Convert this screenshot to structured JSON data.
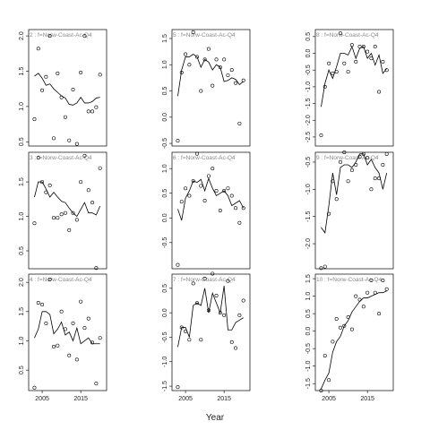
{
  "chart_data": [
    {
      "type": "scatter",
      "title": "2 : f=Norw-Coast-Ac-Q4",
      "xlim": [
        2001.5,
        2021.7
      ],
      "x": [
        2003,
        2004,
        2005,
        2006,
        2007,
        2008,
        2009,
        2010,
        2011,
        2012,
        2013,
        2014,
        2015,
        2016,
        2017,
        2018,
        2019,
        2020
      ],
      "values": [
        0.82,
        1.82,
        1.23,
        1.42,
        2.0,
        0.55,
        1.47,
        1.13,
        0.85,
        0.52,
        1.24,
        0.47,
        1.48,
        2.0,
        0.93,
        0.93,
        0.99,
        1.45
      ],
      "line": [
        1.43,
        1.47,
        1.4,
        1.3,
        1.32,
        1.25,
        1.2,
        1.15,
        1.12,
        1.03,
        1.02,
        1.05,
        1.13,
        1.05,
        1.05,
        1.07,
        1.12,
        1.13
      ],
      "ylim": [
        0.44,
        2.09
      ],
      "yticks": [
        {
          "value": 0.5,
          "label": "0.5"
        },
        {
          "value": 1,
          "label": "1.0"
        },
        {
          "value": 1.5,
          "label": "1.5"
        },
        {
          "value": 2,
          "label": "2.0"
        }
      ]
    },
    {
      "type": "scatter",
      "title": "5 : f=Norw-Coast-Ac-Q4",
      "xlim": [
        2001.5,
        2021.7
      ],
      "x": [
        2003,
        2004,
        2005,
        2006,
        2007,
        2008,
        2009,
        2010,
        2011,
        2012,
        2013,
        2014,
        2015,
        2016,
        2017,
        2018,
        2019,
        2020
      ],
      "values": [
        -0.45,
        0.85,
        1.2,
        1.0,
        1.62,
        1.15,
        0.5,
        1.1,
        1.3,
        0.6,
        1.1,
        0.95,
        1.1,
        0.8,
        0.9,
        0.65,
        -0.12,
        0.7
      ],
      "line": [
        0.4,
        0.9,
        1.15,
        1.15,
        1.2,
        1.15,
        0.95,
        1.1,
        1.05,
        0.9,
        1.0,
        0.95,
        0.68,
        0.7,
        0.75,
        0.72,
        0.62,
        0.68
      ],
      "ylim": [
        -0.55,
        1.67
      ],
      "yticks": [
        {
          "value": -0.5,
          "label": "-0.5"
        },
        {
          "value": 0,
          "label": "0.0"
        },
        {
          "value": 0.5,
          "label": "0.5"
        },
        {
          "value": 1,
          "label": "1.0"
        },
        {
          "value": 1.5,
          "label": "1.5"
        }
      ]
    },
    {
      "type": "scatter",
      "title": "8 : f=Norw-Coast-Ac-Q4",
      "xlim": [
        2001.5,
        2021.7
      ],
      "x": [
        2003,
        2004,
        2005,
        2006,
        2007,
        2008,
        2009,
        2010,
        2011,
        2012,
        2013,
        2014,
        2015,
        2016,
        2017,
        2018,
        2019,
        2020
      ],
      "values": [
        -2.45,
        -1.0,
        -0.3,
        -0.6,
        -0.55,
        0.6,
        -0.3,
        -0.55,
        0.25,
        -0.25,
        0.2,
        0.2,
        0.05,
        -0.15,
        0.2,
        -1.15,
        -0.25,
        -0.5
      ],
      "line": [
        -1.6,
        -0.9,
        -0.5,
        -0.75,
        -0.4,
        0.0,
        0.0,
        -0.05,
        0.2,
        -0.15,
        0.15,
        0.2,
        -0.15,
        0.0,
        -0.35,
        -0.05,
        -0.6,
        -0.45
      ],
      "ylim": [
        -2.77,
        0.71
      ],
      "yticks": [
        {
          "value": -2.5,
          "label": "-2.5"
        },
        {
          "value": -2,
          "label": "-2.0"
        },
        {
          "value": -1.5,
          "label": "-1.5"
        },
        {
          "value": -1,
          "label": "-1.0"
        },
        {
          "value": -0.5,
          "label": "-0.5"
        },
        {
          "value": 0,
          "label": "0.0"
        },
        {
          "value": 0.5,
          "label": "0.5"
        }
      ]
    },
    {
      "type": "scatter",
      "title": "3 : f=Norw-Coast-Ac-Q4",
      "xlim": [
        2001.5,
        2021.7
      ],
      "x": [
        2003,
        2004,
        2005,
        2006,
        2007,
        2008,
        2009,
        2010,
        2011,
        2012,
        2013,
        2014,
        2015,
        2016,
        2017,
        2018,
        2019,
        2020
      ],
      "values": [
        0.9,
        1.85,
        1.5,
        1.35,
        1.45,
        0.98,
        0.98,
        1.03,
        1.05,
        0.8,
        1.05,
        0.95,
        1.5,
        1.88,
        1.38,
        1.2,
        0.25,
        1.7
      ],
      "line": [
        1.28,
        1.5,
        1.5,
        1.4,
        1.28,
        1.35,
        1.28,
        1.22,
        1.2,
        1.12,
        1.05,
        1.0,
        1.1,
        1.2,
        1.05,
        1.05,
        1.02,
        1.15
      ],
      "ylim": [
        0.24,
        1.93
      ],
      "yticks": [
        {
          "value": 0.5,
          "label": "0.5"
        },
        {
          "value": 1,
          "label": "1.0"
        },
        {
          "value": 1.5,
          "label": "1.5"
        }
      ]
    },
    {
      "type": "scatter",
      "title": "6 : f=Norw-Coast-Ac-Q4",
      "xlim": [
        2001.5,
        2021.7
      ],
      "x": [
        2003,
        2004,
        2005,
        2006,
        2007,
        2008,
        2009,
        2010,
        2011,
        2012,
        2013,
        2014,
        2015,
        2016,
        2017,
        2018,
        2019,
        2020
      ],
      "values": [
        -0.95,
        0.33,
        0.6,
        0.45,
        0.75,
        1.3,
        0.65,
        0.35,
        0.85,
        1.0,
        0.55,
        0.15,
        0.55,
        0.6,
        0.45,
        0.2,
        -0.1,
        0.2
      ],
      "line": [
        0.18,
        -0.05,
        0.4,
        0.55,
        0.75,
        0.72,
        0.78,
        0.55,
        0.8,
        0.6,
        0.45,
        0.5,
        0.55,
        0.45,
        0.25,
        0.3,
        0.35,
        0.2
      ],
      "ylim": [
        -1.03,
        1.33
      ],
      "yticks": [
        {
          "value": -0.5,
          "label": "-0.5"
        },
        {
          "value": 0,
          "label": "0.0"
        },
        {
          "value": 0.5,
          "label": "0.5"
        },
        {
          "value": 1,
          "label": "1.0"
        }
      ]
    },
    {
      "type": "scatter",
      "title": "9 : f=Norw-Coast-Ac-Q4",
      "xlim": [
        2001.5,
        2021.7
      ],
      "x": [
        2003,
        2004,
        2005,
        2006,
        2007,
        2008,
        2009,
        2010,
        2011,
        2012,
        2013,
        2014,
        2015,
        2016,
        2017,
        2018,
        2019,
        2020
      ],
      "values": [
        -2.45,
        -2.42,
        -1.45,
        -0.85,
        -1.18,
        -0.5,
        -0.32,
        -0.85,
        -0.65,
        -0.55,
        -0.4,
        -0.35,
        -0.42,
        -1.0,
        -0.8,
        -0.8,
        -0.55,
        -0.35
      ],
      "line": [
        -1.7,
        -1.8,
        -1.3,
        -0.7,
        -1.1,
        -0.6,
        -0.55,
        -0.55,
        -0.6,
        -0.5,
        -0.35,
        -0.35,
        -0.55,
        -0.45,
        -0.6,
        -0.7,
        -1.0,
        -0.7
      ],
      "ylim": [
        -2.46,
        -0.32
      ],
      "yticks": [
        {
          "value": -2,
          "label": "-2.0"
        },
        {
          "value": -1.5,
          "label": "-1.5"
        },
        {
          "value": -1,
          "label": "-1.0"
        },
        {
          "value": -0.5,
          "label": "-0.5"
        }
      ]
    },
    {
      "type": "scatter",
      "title": "4 : f=Norw-Coast-Ac-Q4",
      "xlim": [
        2001.5,
        2021.7
      ],
      "xticks": [
        2005,
        2015
      ],
      "x": [
        2003,
        2004,
        2005,
        2006,
        2007,
        2008,
        2009,
        2010,
        2011,
        2012,
        2013,
        2014,
        2015,
        2016,
        2017,
        2018,
        2019,
        2020
      ],
      "values": [
        0.2,
        1.65,
        1.62,
        1.3,
        2.05,
        0.9,
        0.92,
        1.5,
        1.2,
        0.75,
        1.3,
        0.68,
        1.67,
        1.22,
        1.38,
        0.97,
        0.27,
        1.05
      ],
      "line": [
        1.05,
        1.2,
        1.5,
        1.5,
        1.45,
        1.12,
        1.2,
        1.32,
        1.1,
        1.15,
        1.0,
        1.22,
        0.95,
        1.0,
        1.05,
        0.95,
        0.95,
        0.95
      ],
      "ylim": [
        0.15,
        2.14
      ],
      "yticks": [
        {
          "value": 0.5,
          "label": "0.5"
        },
        {
          "value": 1,
          "label": "1.0"
        },
        {
          "value": 1.5,
          "label": "1.5"
        },
        {
          "value": 2,
          "label": "2.0"
        }
      ]
    },
    {
      "type": "scatter",
      "title": "7 : f=Norw-Coast-Ac-Q4",
      "xlim": [
        2001.5,
        2021.7
      ],
      "xticks": [
        2005,
        2015
      ],
      "x": [
        2003,
        2004,
        2005,
        2006,
        2007,
        2008,
        2009,
        2010,
        2011,
        2012,
        2013,
        2014,
        2015,
        2016,
        2017,
        2018,
        2019,
        2020
      ],
      "values": [
        -1.52,
        -0.3,
        -0.38,
        -0.55,
        0.6,
        0.2,
        -0.55,
        0.7,
        0.05,
        0.8,
        0.35,
        0.0,
        -0.05,
        0.65,
        -0.6,
        -0.72,
        -0.05,
        0.25
      ],
      "line": [
        -0.7,
        -0.3,
        -0.3,
        -0.5,
        0.15,
        0.2,
        0.15,
        0.5,
        0.0,
        0.4,
        0.2,
        0.0,
        0.55,
        -0.35,
        -0.35,
        -0.2,
        -0.15,
        -0.1
      ],
      "ylim": [
        -1.59,
        0.79
      ],
      "yticks": [
        {
          "value": -1.5,
          "label": "-1.5"
        },
        {
          "value": -1,
          "label": "-1.0"
        },
        {
          "value": -0.5,
          "label": "-0.5"
        },
        {
          "value": 0,
          "label": "0.0"
        },
        {
          "value": 0.5,
          "label": "0.5"
        }
      ]
    },
    {
      "type": "scatter",
      "title": "10 : f=Norw-Coast-Ac-Q4",
      "xlim": [
        2001.5,
        2021.7
      ],
      "xticks": [
        2005,
        2015
      ],
      "x": [
        2003,
        2004,
        2005,
        2006,
        2007,
        2008,
        2009,
        2010,
        2011,
        2012,
        2013,
        2014,
        2015,
        2016,
        2017,
        2018,
        2019,
        2020
      ],
      "values": [
        -1.7,
        -0.7,
        -1.4,
        -0.3,
        0.35,
        0.1,
        0.15,
        0.4,
        0.05,
        1.0,
        0.9,
        0.7,
        1.1,
        1.45,
        1.1,
        0.5,
        1.45,
        1.2
      ],
      "line": [
        -1.65,
        -1.4,
        -1.2,
        -0.6,
        -0.3,
        -0.15,
        0.15,
        0.3,
        0.55,
        0.7,
        0.85,
        0.95,
        0.95,
        1.0,
        1.05,
        1.1,
        1.1,
        1.15
      ],
      "ylim": [
        -1.7,
        1.63
      ],
      "yticks": [
        {
          "value": -1.5,
          "label": "-1.5"
        },
        {
          "value": -1,
          "label": "-1.0"
        },
        {
          "value": -0.5,
          "label": "-0.5"
        },
        {
          "value": 0,
          "label": "0.0"
        },
        {
          "value": 0.5,
          "label": "0.5"
        },
        {
          "value": 1,
          "label": "1.0"
        },
        {
          "value": 1.5,
          "label": "1.5"
        }
      ]
    }
  ],
  "x_label": "Year"
}
